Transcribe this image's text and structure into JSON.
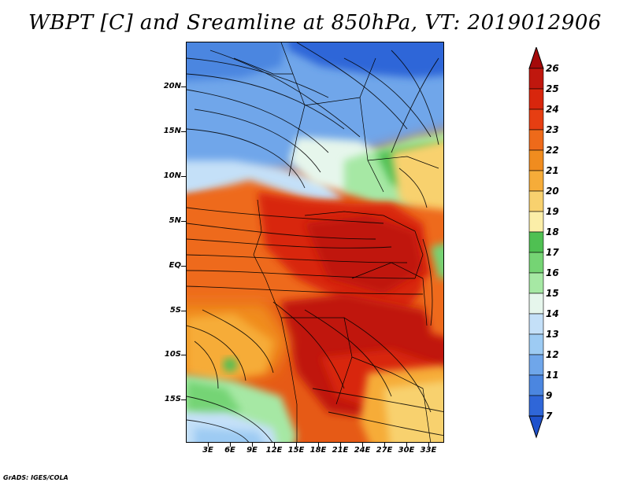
{
  "title": "WBPT [C] and Sreamline at 850hPa, VT: 2019012906",
  "footer": "GrADS: IGES/COLA",
  "map": {
    "lon_range": [
      0,
      35
    ],
    "lat_range": [
      -20,
      25
    ],
    "lat_labels": [
      "20N",
      "15N",
      "10N",
      "5N",
      "EQ",
      "5S",
      "10S",
      "15S"
    ],
    "lon_labels": [
      "3E",
      "6E",
      "9E",
      "12E",
      "15E",
      "18E",
      "21E",
      "24E",
      "27E",
      "30E",
      "33E"
    ]
  },
  "colorbar": {
    "labels": [
      "26",
      "25",
      "24",
      "23",
      "22",
      "21",
      "20",
      "19",
      "18",
      "17",
      "16",
      "15",
      "14",
      "13",
      "12",
      "11",
      "9",
      "7"
    ],
    "colors": [
      "#a50a0a",
      "#c0170e",
      "#d8260d",
      "#e63e12",
      "#ee6a1a",
      "#f08c1f",
      "#f6ac39",
      "#f8d16e",
      "#fbeea8",
      "#4fc052",
      "#75d474",
      "#a6e8a4",
      "#e6f6ec",
      "#c4e0f8",
      "#9dcbf3",
      "#6fa6ea",
      "#4b86e0",
      "#2f66d8",
      "#1f52cc"
    ]
  }
}
